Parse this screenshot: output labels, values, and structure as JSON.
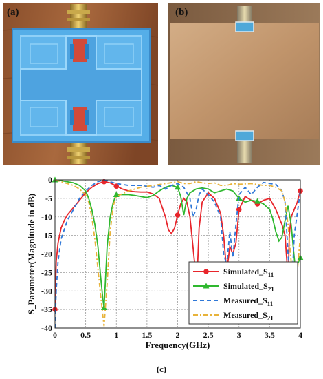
{
  "panels": {
    "a": {
      "label": "(a)"
    },
    "b": {
      "label": "(b)"
    },
    "c": {
      "caption": "(c)"
    }
  },
  "colors": {
    "sim_s11": "#e8252b",
    "sim_s21": "#2fb82f",
    "meas_s11": "#2f78d8",
    "meas_s21": "#e8b33a",
    "substrate_blue": "#4fa7e6",
    "wood": "#9a5c36",
    "copper": "#c29a73"
  },
  "chart_data": {
    "type": "line",
    "xlabel": "Frequency(GHz)",
    "ylabel": "S_Parameter(Magnitude in dB)",
    "xlim": [
      0,
      4
    ],
    "ylim": [
      -40,
      0
    ],
    "x_ticks": [
      "0",
      "0.5",
      "1",
      "1.5",
      "2",
      "2.5",
      "3",
      "3.5",
      "4"
    ],
    "y_ticks": [
      "0",
      "-5",
      "-10",
      "-15",
      "-20",
      "-25",
      "-30",
      "-35",
      "-40"
    ],
    "grid": true,
    "legend_position": "bottom-right",
    "series": [
      {
        "name": "Simulated_S11",
        "legend_base": "Simulated_S",
        "legend_sub": "11",
        "color": "#e8252b",
        "dash": "solid",
        "marker": "circle",
        "x": [
          0,
          0.02,
          0.05,
          0.1,
          0.15,
          0.2,
          0.3,
          0.4,
          0.5,
          0.6,
          0.7,
          0.8,
          0.9,
          1.0,
          1.1,
          1.2,
          1.3,
          1.4,
          1.5,
          1.6,
          1.7,
          1.8,
          1.85,
          1.9,
          1.95,
          2.0,
          2.05,
          2.1,
          2.15,
          2.2,
          2.25,
          2.3,
          2.32,
          2.35,
          2.4,
          2.5,
          2.6,
          2.7,
          2.75,
          2.8,
          2.85,
          2.9,
          2.95,
          3.0,
          3.1,
          3.2,
          3.3,
          3.4,
          3.5,
          3.6,
          3.65,
          3.7,
          3.75,
          3.78,
          3.8,
          3.82,
          3.85,
          3.9,
          3.95,
          4.0
        ],
        "y": [
          -35,
          -22,
          -17,
          -13,
          -11,
          -9.5,
          -7.5,
          -5.5,
          -3.5,
          -2,
          -1,
          -0.5,
          -0.8,
          -1.7,
          -2.5,
          -3,
          -3.2,
          -3.3,
          -3.3,
          -3.8,
          -5,
          -10,
          -13.5,
          -14.5,
          -13,
          -9.5,
          -6.5,
          -5,
          -6,
          -10,
          -18,
          -26.5,
          -25,
          -13,
          -6,
          -3.5,
          -5,
          -9,
          -15,
          -25,
          -18,
          -20,
          -17,
          -8,
          -4.5,
          -5.5,
          -6.5,
          -5.5,
          -5,
          -8,
          -10,
          -12,
          -15,
          -22,
          -30,
          -15,
          -10,
          -8,
          -6,
          -3
        ]
      },
      {
        "name": "Simulated_S21",
        "legend_base": "Simulated_S",
        "legend_sub": "21",
        "color": "#2fb82f",
        "dash": "solid",
        "marker": "triangle",
        "x": [
          0,
          0.1,
          0.2,
          0.3,
          0.4,
          0.5,
          0.55,
          0.6,
          0.65,
          0.7,
          0.75,
          0.78,
          0.8,
          0.82,
          0.85,
          0.9,
          0.95,
          1.0,
          1.1,
          1.2,
          1.3,
          1.4,
          1.5,
          1.6,
          1.7,
          1.8,
          1.9,
          2.0,
          2.05,
          2.1,
          2.15,
          2.2,
          2.3,
          2.4,
          2.5,
          2.6,
          2.7,
          2.8,
          2.9,
          3.0,
          3.1,
          3.2,
          3.3,
          3.4,
          3.5,
          3.55,
          3.6,
          3.65,
          3.7,
          3.75,
          3.8,
          3.85,
          3.9,
          3.93,
          3.95,
          4.0
        ],
        "y": [
          0,
          -0.2,
          -0.5,
          -0.8,
          -1.5,
          -3,
          -5,
          -8,
          -12,
          -18,
          -27,
          -32,
          -34.5,
          -28,
          -18,
          -10,
          -6,
          -4,
          -4,
          -4,
          -4.2,
          -4.5,
          -4.8,
          -4.2,
          -3,
          -2,
          -1.5,
          -2,
          -4.5,
          -9.5,
          -5,
          -3.5,
          -2.5,
          -2.2,
          -2.5,
          -3.5,
          -3,
          -2.5,
          -3,
          -5,
          -6,
          -5.5,
          -5.8,
          -6.5,
          -8,
          -10.5,
          -14,
          -16.5,
          -15.5,
          -11,
          -7,
          -12,
          -21,
          -26,
          -23,
          -21
        ]
      },
      {
        "name": "Measured_S11",
        "legend_base": "Measured_S",
        "legend_sub": "11",
        "color": "#2f78d8",
        "dash": "dashed",
        "marker": "none",
        "x": [
          0,
          0.02,
          0.05,
          0.1,
          0.2,
          0.3,
          0.4,
          0.5,
          0.6,
          0.7,
          0.8,
          0.9,
          1.0,
          1.2,
          1.4,
          1.6,
          1.7,
          1.8,
          1.9,
          2.0,
          2.1,
          2.2,
          2.25,
          2.3,
          2.35,
          2.4,
          2.5,
          2.6,
          2.7,
          2.75,
          2.8,
          2.85,
          2.9,
          2.95,
          3.0,
          3.1,
          3.2,
          3.3,
          3.4,
          3.5,
          3.6,
          3.7,
          3.75,
          3.8,
          3.85,
          3.9,
          4.0
        ],
        "y": [
          -40,
          -30,
          -22,
          -16,
          -11,
          -8,
          -5,
          -3,
          -1.5,
          -0.5,
          0,
          -0.5,
          -1,
          -1.5,
          -1.5,
          -2,
          -1.5,
          -2.5,
          -1.5,
          -1,
          -2,
          -5,
          -10,
          -8,
          -4,
          -2.5,
          -4,
          -6,
          -10,
          -20,
          -23,
          -14,
          -21,
          -12,
          -4,
          -2,
          -4,
          -2,
          -0.7,
          -1,
          -1.2,
          -3,
          -6,
          -20,
          -33,
          -15,
          -3
        ]
      },
      {
        "name": "Measured_S21",
        "legend_base": "Measured_S",
        "legend_sub": "21",
        "color": "#e8b33a",
        "dash": "dashdot",
        "marker": "none",
        "x": [
          0,
          0.1,
          0.2,
          0.3,
          0.4,
          0.5,
          0.55,
          0.6,
          0.65,
          0.7,
          0.75,
          0.8,
          0.85,
          0.9,
          0.95,
          1.0,
          1.2,
          1.4,
          1.6,
          1.8,
          2.0,
          2.1,
          2.2,
          2.3,
          2.4,
          2.5,
          2.6,
          2.7,
          2.8,
          2.9,
          3.0,
          3.2,
          3.4,
          3.5,
          3.6,
          3.7,
          3.75,
          3.8,
          3.85,
          3.9,
          3.95,
          4.0
        ],
        "y": [
          0,
          -0.5,
          -1,
          -1.5,
          -2.5,
          -4,
          -6,
          -10,
          -16,
          -24,
          -32,
          -39.5,
          -28,
          -14,
          -7,
          -4.5,
          -3,
          -2,
          -1.5,
          -1,
          -0.5,
          -1,
          -1,
          -0.5,
          -0.8,
          -1,
          -0.8,
          -1.5,
          -1.5,
          -1,
          -1.2,
          -1,
          -1.5,
          -1.5,
          -2,
          -3,
          -6,
          -12,
          -22,
          -35,
          -25,
          -15
        ]
      }
    ]
  }
}
